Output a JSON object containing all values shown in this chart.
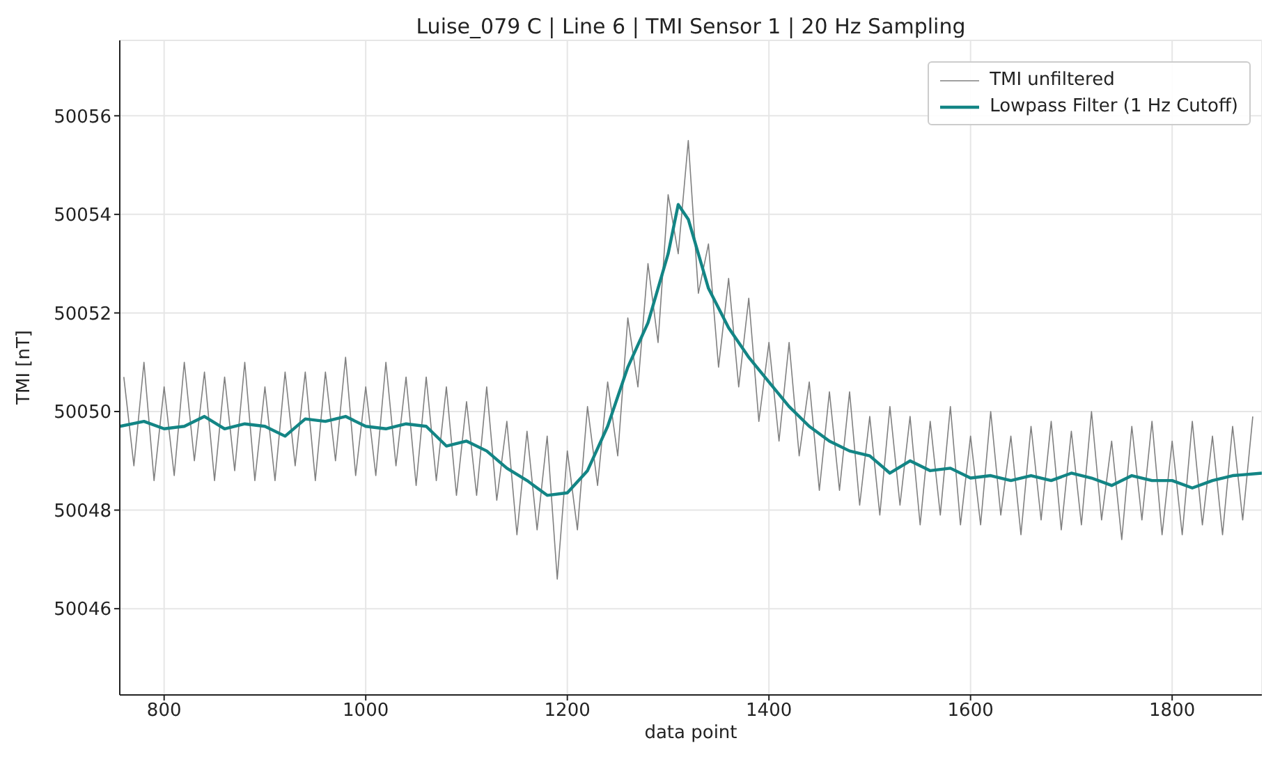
{
  "chart_data": {
    "type": "line",
    "title": "Luise_079 C | Line 6 | TMI Sensor 1 | 20 Hz Sampling",
    "xlabel": "data point",
    "ylabel": "TMI [nT]",
    "xlim": [
      756,
      1889
    ],
    "ylim": [
      50044.25,
      50057.53
    ],
    "xticks": [
      800,
      1000,
      1200,
      1400,
      1600,
      1800
    ],
    "yticks": [
      50046,
      50048,
      50050,
      50052,
      50054,
      50056
    ],
    "grid": true,
    "legend": "top right",
    "marker": "none",
    "line_style": "solid",
    "series": [
      {
        "name": "TMI unfiltered",
        "color": "#808080",
        "x": [
          760,
          770,
          780,
          790,
          800,
          810,
          820,
          830,
          840,
          850,
          860,
          870,
          880,
          890,
          900,
          910,
          920,
          930,
          940,
          950,
          960,
          970,
          980,
          990,
          1000,
          1010,
          1020,
          1030,
          1040,
          1050,
          1060,
          1070,
          1080,
          1090,
          1100,
          1110,
          1120,
          1130,
          1140,
          1150,
          1160,
          1170,
          1180,
          1190,
          1200,
          1210,
          1220,
          1230,
          1240,
          1250,
          1260,
          1270,
          1280,
          1290,
          1300,
          1310,
          1320,
          1330,
          1340,
          1350,
          1360,
          1370,
          1380,
          1390,
          1400,
          1410,
          1420,
          1430,
          1440,
          1450,
          1460,
          1470,
          1480,
          1490,
          1500,
          1510,
          1520,
          1530,
          1540,
          1550,
          1560,
          1570,
          1580,
          1590,
          1600,
          1610,
          1620,
          1630,
          1640,
          1650,
          1660,
          1670,
          1680,
          1690,
          1700,
          1710,
          1720,
          1730,
          1740,
          1750,
          1760,
          1770,
          1780,
          1790,
          1800,
          1810,
          1820,
          1830,
          1840,
          1850,
          1860,
          1870,
          1880
        ],
        "values": [
          50050.7,
          50048.9,
          50051.0,
          50048.6,
          50050.5,
          50048.7,
          50051.0,
          50049.0,
          50050.8,
          50048.6,
          50050.7,
          50048.8,
          50051.0,
          50048.6,
          50050.5,
          50048.6,
          50050.8,
          50048.9,
          50050.8,
          50048.6,
          50050.8,
          50049.0,
          50051.1,
          50048.7,
          50050.5,
          50048.7,
          50051.0,
          50048.9,
          50050.7,
          50048.5,
          50050.7,
          50048.6,
          50050.5,
          50048.3,
          50050.2,
          50048.3,
          50050.5,
          50048.2,
          50049.8,
          50047.5,
          50049.6,
          50047.6,
          50049.5,
          50046.6,
          50049.2,
          50047.6,
          50050.1,
          50048.5,
          50050.6,
          50049.1,
          50051.9,
          50050.5,
          50053.0,
          50051.4,
          50054.4,
          50053.2,
          50055.5,
          50052.4,
          50053.4,
          50050.9,
          50052.7,
          50050.5,
          50052.3,
          50049.8,
          50051.4,
          50049.4,
          50051.4,
          50049.1,
          50050.6,
          50048.4,
          50050.4,
          50048.4,
          50050.4,
          50048.1,
          50049.9,
          50047.9,
          50050.1,
          50048.1,
          50049.9,
          50047.7,
          50049.8,
          50047.9,
          50050.1,
          50047.7,
          50049.5,
          50047.7,
          50050.0,
          50047.9,
          50049.5,
          50047.5,
          50049.7,
          50047.8,
          50049.8,
          50047.6,
          50049.6,
          50047.7,
          50050.0,
          50047.8,
          50049.4,
          50047.4,
          50049.7,
          50047.8,
          50049.8,
          50047.5,
          50049.4,
          50047.5,
          50049.8,
          50047.7,
          50049.5,
          50047.5,
          50049.7,
          50047.8,
          50049.9
        ]
      },
      {
        "name": "Lowpass Filter (1 Hz Cutoff)",
        "color": "#138585",
        "x": [
          756,
          780,
          800,
          820,
          840,
          860,
          880,
          900,
          920,
          940,
          960,
          980,
          1000,
          1020,
          1040,
          1060,
          1080,
          1100,
          1120,
          1140,
          1160,
          1180,
          1200,
          1220,
          1240,
          1260,
          1280,
          1300,
          1310,
          1320,
          1340,
          1360,
          1380,
          1400,
          1420,
          1440,
          1460,
          1480,
          1500,
          1520,
          1540,
          1560,
          1580,
          1600,
          1620,
          1640,
          1660,
          1680,
          1700,
          1720,
          1740,
          1760,
          1780,
          1800,
          1820,
          1840,
          1860,
          1889
        ],
        "values": [
          50049.7,
          50049.8,
          50049.65,
          50049.7,
          50049.9,
          50049.65,
          50049.75,
          50049.7,
          50049.5,
          50049.85,
          50049.8,
          50049.9,
          50049.7,
          50049.65,
          50049.75,
          50049.7,
          50049.3,
          50049.4,
          50049.2,
          50048.85,
          50048.6,
          50048.3,
          50048.35,
          50048.8,
          50049.7,
          50050.9,
          50051.8,
          50053.2,
          50054.2,
          50053.9,
          50052.5,
          50051.7,
          50051.1,
          50050.6,
          50050.1,
          50049.7,
          50049.4,
          50049.2,
          50049.1,
          50048.75,
          50049.0,
          50048.8,
          50048.85,
          50048.65,
          50048.7,
          50048.6,
          50048.7,
          50048.6,
          50048.75,
          50048.65,
          50048.5,
          50048.7,
          50048.6,
          50048.6,
          50048.45,
          50048.6,
          50048.7,
          50048.75
        ]
      }
    ]
  }
}
